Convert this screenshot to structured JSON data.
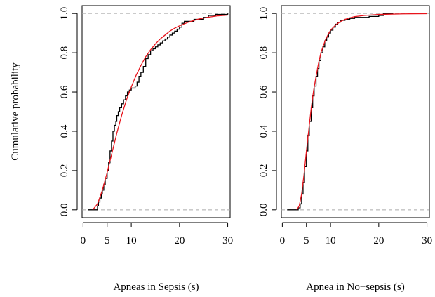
{
  "colors": {
    "ecdf": "#000000",
    "fit": "#e8141c",
    "ref": "#aaaaaa"
  },
  "chart_data": [
    {
      "type": "line",
      "ylabel": "Cumulative probability",
      "xlabel": "Apneas in Sepsis (s)",
      "xlim": [
        -0.2,
        30.5
      ],
      "ylim": [
        -0.04,
        1.04
      ],
      "xticks": [
        0,
        5,
        10,
        20,
        30
      ],
      "xtick_labels": [
        "0",
        "5",
        "10",
        "20",
        "30"
      ],
      "yticks": [
        0,
        0.2,
        0.4,
        0.6,
        0.8,
        1
      ],
      "ytick_labels": [
        "0.0",
        "0.2",
        "0.4",
        "0.6",
        "0.8",
        "1.0"
      ],
      "reference_lines": [
        0,
        1
      ],
      "series": [
        {
          "style": "step",
          "x": [
            1.0,
            2.5,
            3.0,
            3.2,
            3.5,
            3.8,
            4.0,
            4.3,
            4.6,
            5.0,
            5.3,
            5.6,
            5.9,
            6.2,
            6.5,
            6.8,
            7.0,
            7.3,
            7.6,
            8.0,
            8.4,
            8.8,
            9.2,
            9.6,
            10.0,
            10.4,
            10.8,
            11.2,
            11.6,
            12.0,
            12.5,
            13.0,
            13.5,
            14.0,
            14.5,
            15.0,
            15.5,
            16.0,
            16.5,
            17.0,
            17.5,
            18.0,
            18.5,
            19.0,
            19.5,
            20.0,
            20.5,
            21.0,
            21.5,
            22.0,
            23.0,
            24.0,
            25.0,
            26.0,
            27.5,
            30.0
          ],
          "y": [
            0.0,
            0.0,
            0.02,
            0.04,
            0.06,
            0.08,
            0.1,
            0.13,
            0.16,
            0.2,
            0.24,
            0.3,
            0.35,
            0.4,
            0.43,
            0.45,
            0.48,
            0.5,
            0.52,
            0.54,
            0.56,
            0.58,
            0.6,
            0.61,
            0.62,
            0.62,
            0.63,
            0.65,
            0.68,
            0.7,
            0.73,
            0.77,
            0.79,
            0.81,
            0.82,
            0.83,
            0.84,
            0.85,
            0.86,
            0.87,
            0.88,
            0.89,
            0.9,
            0.91,
            0.92,
            0.93,
            0.95,
            0.96,
            0.96,
            0.96,
            0.97,
            0.97,
            0.98,
            0.99,
            0.995,
            1.0
          ]
        },
        {
          "style": "smooth",
          "x": [
            2.0,
            3.0,
            4.0,
            5.0,
            6.0,
            7.0,
            8.0,
            9.0,
            10.0,
            11.0,
            12.0,
            13.0,
            14.0,
            15.0,
            16.0,
            17.0,
            18.0,
            19.0,
            20.0,
            22.0,
            24.0,
            26.0,
            28.0,
            30.0
          ],
          "y": [
            0.0,
            0.03,
            0.1,
            0.19,
            0.29,
            0.39,
            0.48,
            0.56,
            0.625,
            0.685,
            0.735,
            0.78,
            0.815,
            0.845,
            0.87,
            0.89,
            0.91,
            0.925,
            0.937,
            0.957,
            0.972,
            0.981,
            0.988,
            0.992
          ]
        }
      ]
    },
    {
      "type": "line",
      "ylabel": "",
      "xlabel": "Apnea in No−sepsis (s)",
      "xlim": [
        -0.2,
        30.5
      ],
      "ylim": [
        -0.04,
        1.04
      ],
      "xticks": [
        0,
        5,
        10,
        20,
        30
      ],
      "xtick_labels": [
        "0",
        "5",
        "10",
        "20",
        "30"
      ],
      "yticks": [
        0,
        0.2,
        0.4,
        0.6,
        0.8,
        1
      ],
      "ytick_labels": [
        "0.0",
        "0.2",
        "0.4",
        "0.6",
        "0.8",
        "1.0"
      ],
      "reference_lines": [
        0,
        1
      ],
      "series": [
        {
          "style": "step",
          "x": [
            1.0,
            3.0,
            3.3,
            3.7,
            4.0,
            4.3,
            4.6,
            5.0,
            5.3,
            5.6,
            6.0,
            6.3,
            6.6,
            7.0,
            7.3,
            7.6,
            8.0,
            8.4,
            8.8,
            9.2,
            9.6,
            10.0,
            10.5,
            11.0,
            11.5,
            12.0,
            13.0,
            14.0,
            15.0,
            16.0,
            17.0,
            18.0,
            19.0,
            20.0,
            21.0,
            22.0,
            23.0
          ],
          "y": [
            0.0,
            0.0,
            0.01,
            0.03,
            0.08,
            0.14,
            0.22,
            0.3,
            0.38,
            0.45,
            0.52,
            0.58,
            0.63,
            0.68,
            0.72,
            0.76,
            0.8,
            0.83,
            0.86,
            0.88,
            0.9,
            0.915,
            0.93,
            0.945,
            0.955,
            0.965,
            0.97,
            0.975,
            0.98,
            0.98,
            0.98,
            0.985,
            0.985,
            0.99,
            1.0,
            1.0,
            1.0
          ]
        },
        {
          "style": "smooth",
          "x": [
            3.0,
            3.5,
            4.0,
            4.5,
            5.0,
            5.5,
            6.0,
            6.5,
            7.0,
            7.5,
            8.0,
            9.0,
            10.0,
            11.0,
            12.0,
            13.0,
            14.0,
            15.0,
            17.0,
            20.0,
            25.0,
            30.0
          ],
          "y": [
            0.0,
            0.02,
            0.08,
            0.18,
            0.3,
            0.41,
            0.52,
            0.61,
            0.68,
            0.745,
            0.8,
            0.87,
            0.915,
            0.94,
            0.958,
            0.97,
            0.978,
            0.984,
            0.99,
            0.995,
            0.998,
            0.999
          ]
        }
      ]
    }
  ]
}
